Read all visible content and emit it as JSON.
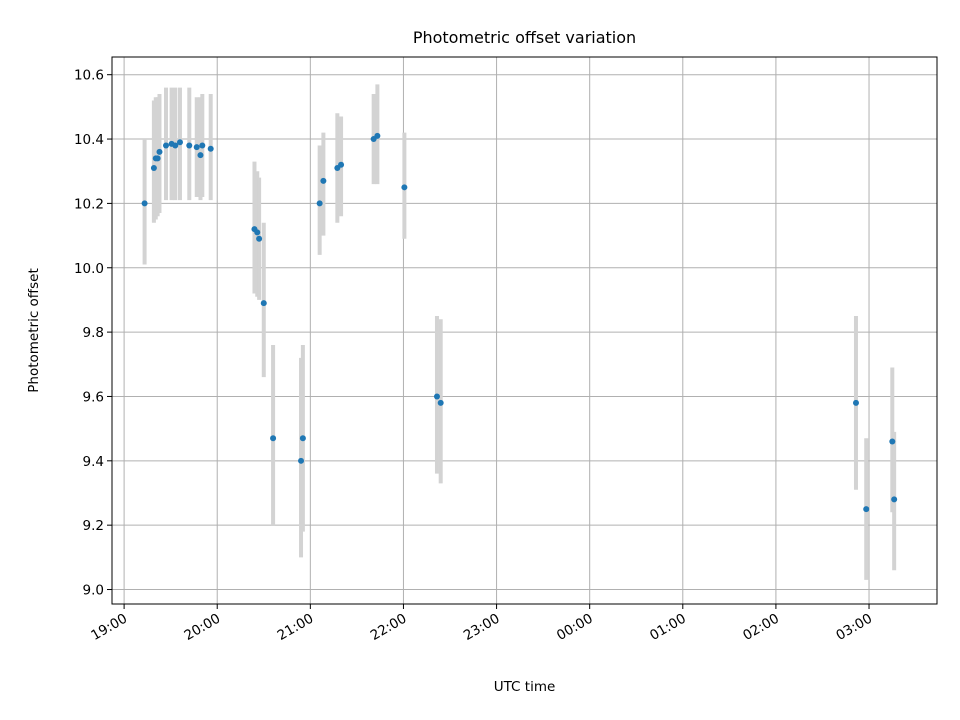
{
  "chart_data": {
    "type": "scatter",
    "title": "Photometric offset variation",
    "xlabel": "UTC time",
    "ylabel": "Photometric offset",
    "x_unit": "UTC hours (values past 24 are the next day)",
    "xlim": [
      18.87,
      27.73
    ],
    "ylim": [
      8.955,
      10.655
    ],
    "x_ticks": [
      19,
      20,
      21,
      22,
      23,
      24,
      25,
      26,
      27
    ],
    "x_tick_labels": [
      "19:00",
      "20:00",
      "21:00",
      "22:00",
      "23:00",
      "00:00",
      "01:00",
      "02:00",
      "03:00"
    ],
    "y_ticks": [
      9.0,
      9.2,
      9.4,
      9.6,
      9.8,
      10.0,
      10.2,
      10.4,
      10.6
    ],
    "y_tick_labels": [
      "9.0",
      "9.2",
      "9.4",
      "9.6",
      "9.8",
      "10.0",
      "10.2",
      "10.4",
      "10.6"
    ],
    "grid": true,
    "marker_color": "#1f77b4",
    "errorbar_color": "#d3d3d3",
    "points": [
      {
        "x": 19.22,
        "y": 10.2,
        "lo": 10.01,
        "hi": 10.4
      },
      {
        "x": 19.32,
        "y": 10.31,
        "lo": 10.14,
        "hi": 10.52
      },
      {
        "x": 19.34,
        "y": 10.34,
        "lo": 10.15,
        "hi": 10.53
      },
      {
        "x": 19.36,
        "y": 10.34,
        "lo": 10.16,
        "hi": 10.53
      },
      {
        "x": 19.38,
        "y": 10.36,
        "lo": 10.17,
        "hi": 10.54
      },
      {
        "x": 19.45,
        "y": 10.38,
        "lo": 10.21,
        "hi": 10.56
      },
      {
        "x": 19.51,
        "y": 10.385,
        "lo": 10.21,
        "hi": 10.56
      },
      {
        "x": 19.55,
        "y": 10.38,
        "lo": 10.21,
        "hi": 10.56
      },
      {
        "x": 19.6,
        "y": 10.39,
        "lo": 10.21,
        "hi": 10.56
      },
      {
        "x": 19.7,
        "y": 10.38,
        "lo": 10.21,
        "hi": 10.56
      },
      {
        "x": 19.78,
        "y": 10.375,
        "lo": 10.22,
        "hi": 10.53
      },
      {
        "x": 19.82,
        "y": 10.35,
        "lo": 10.21,
        "hi": 10.53
      },
      {
        "x": 19.84,
        "y": 10.38,
        "lo": 10.22,
        "hi": 10.54
      },
      {
        "x": 19.93,
        "y": 10.37,
        "lo": 10.21,
        "hi": 10.54
      },
      {
        "x": 20.4,
        "y": 10.12,
        "lo": 9.92,
        "hi": 10.33
      },
      {
        "x": 20.43,
        "y": 10.11,
        "lo": 9.91,
        "hi": 10.3
      },
      {
        "x": 20.45,
        "y": 10.09,
        "lo": 9.9,
        "hi": 10.28
      },
      {
        "x": 20.5,
        "y": 9.89,
        "lo": 9.66,
        "hi": 10.14
      },
      {
        "x": 20.6,
        "y": 9.47,
        "lo": 9.2,
        "hi": 9.76
      },
      {
        "x": 20.9,
        "y": 9.4,
        "lo": 9.1,
        "hi": 9.72
      },
      {
        "x": 20.92,
        "y": 9.47,
        "lo": 9.18,
        "hi": 9.76
      },
      {
        "x": 21.1,
        "y": 10.2,
        "lo": 10.04,
        "hi": 10.38
      },
      {
        "x": 21.14,
        "y": 10.27,
        "lo": 10.1,
        "hi": 10.42
      },
      {
        "x": 21.29,
        "y": 10.31,
        "lo": 10.14,
        "hi": 10.48
      },
      {
        "x": 21.33,
        "y": 10.32,
        "lo": 10.16,
        "hi": 10.47
      },
      {
        "x": 21.68,
        "y": 10.4,
        "lo": 10.26,
        "hi": 10.54
      },
      {
        "x": 21.72,
        "y": 10.41,
        "lo": 10.26,
        "hi": 10.57
      },
      {
        "x": 22.01,
        "y": 10.25,
        "lo": 10.09,
        "hi": 10.42
      },
      {
        "x": 22.36,
        "y": 9.6,
        "lo": 9.36,
        "hi": 9.85
      },
      {
        "x": 22.4,
        "y": 9.58,
        "lo": 9.33,
        "hi": 9.84
      },
      {
        "x": 26.86,
        "y": 9.58,
        "lo": 9.31,
        "hi": 9.85
      },
      {
        "x": 26.97,
        "y": 9.25,
        "lo": 9.03,
        "hi": 9.47
      },
      {
        "x": 27.25,
        "y": 9.46,
        "lo": 9.24,
        "hi": 9.69
      },
      {
        "x": 27.27,
        "y": 9.28,
        "lo": 9.06,
        "hi": 9.49
      }
    ]
  }
}
